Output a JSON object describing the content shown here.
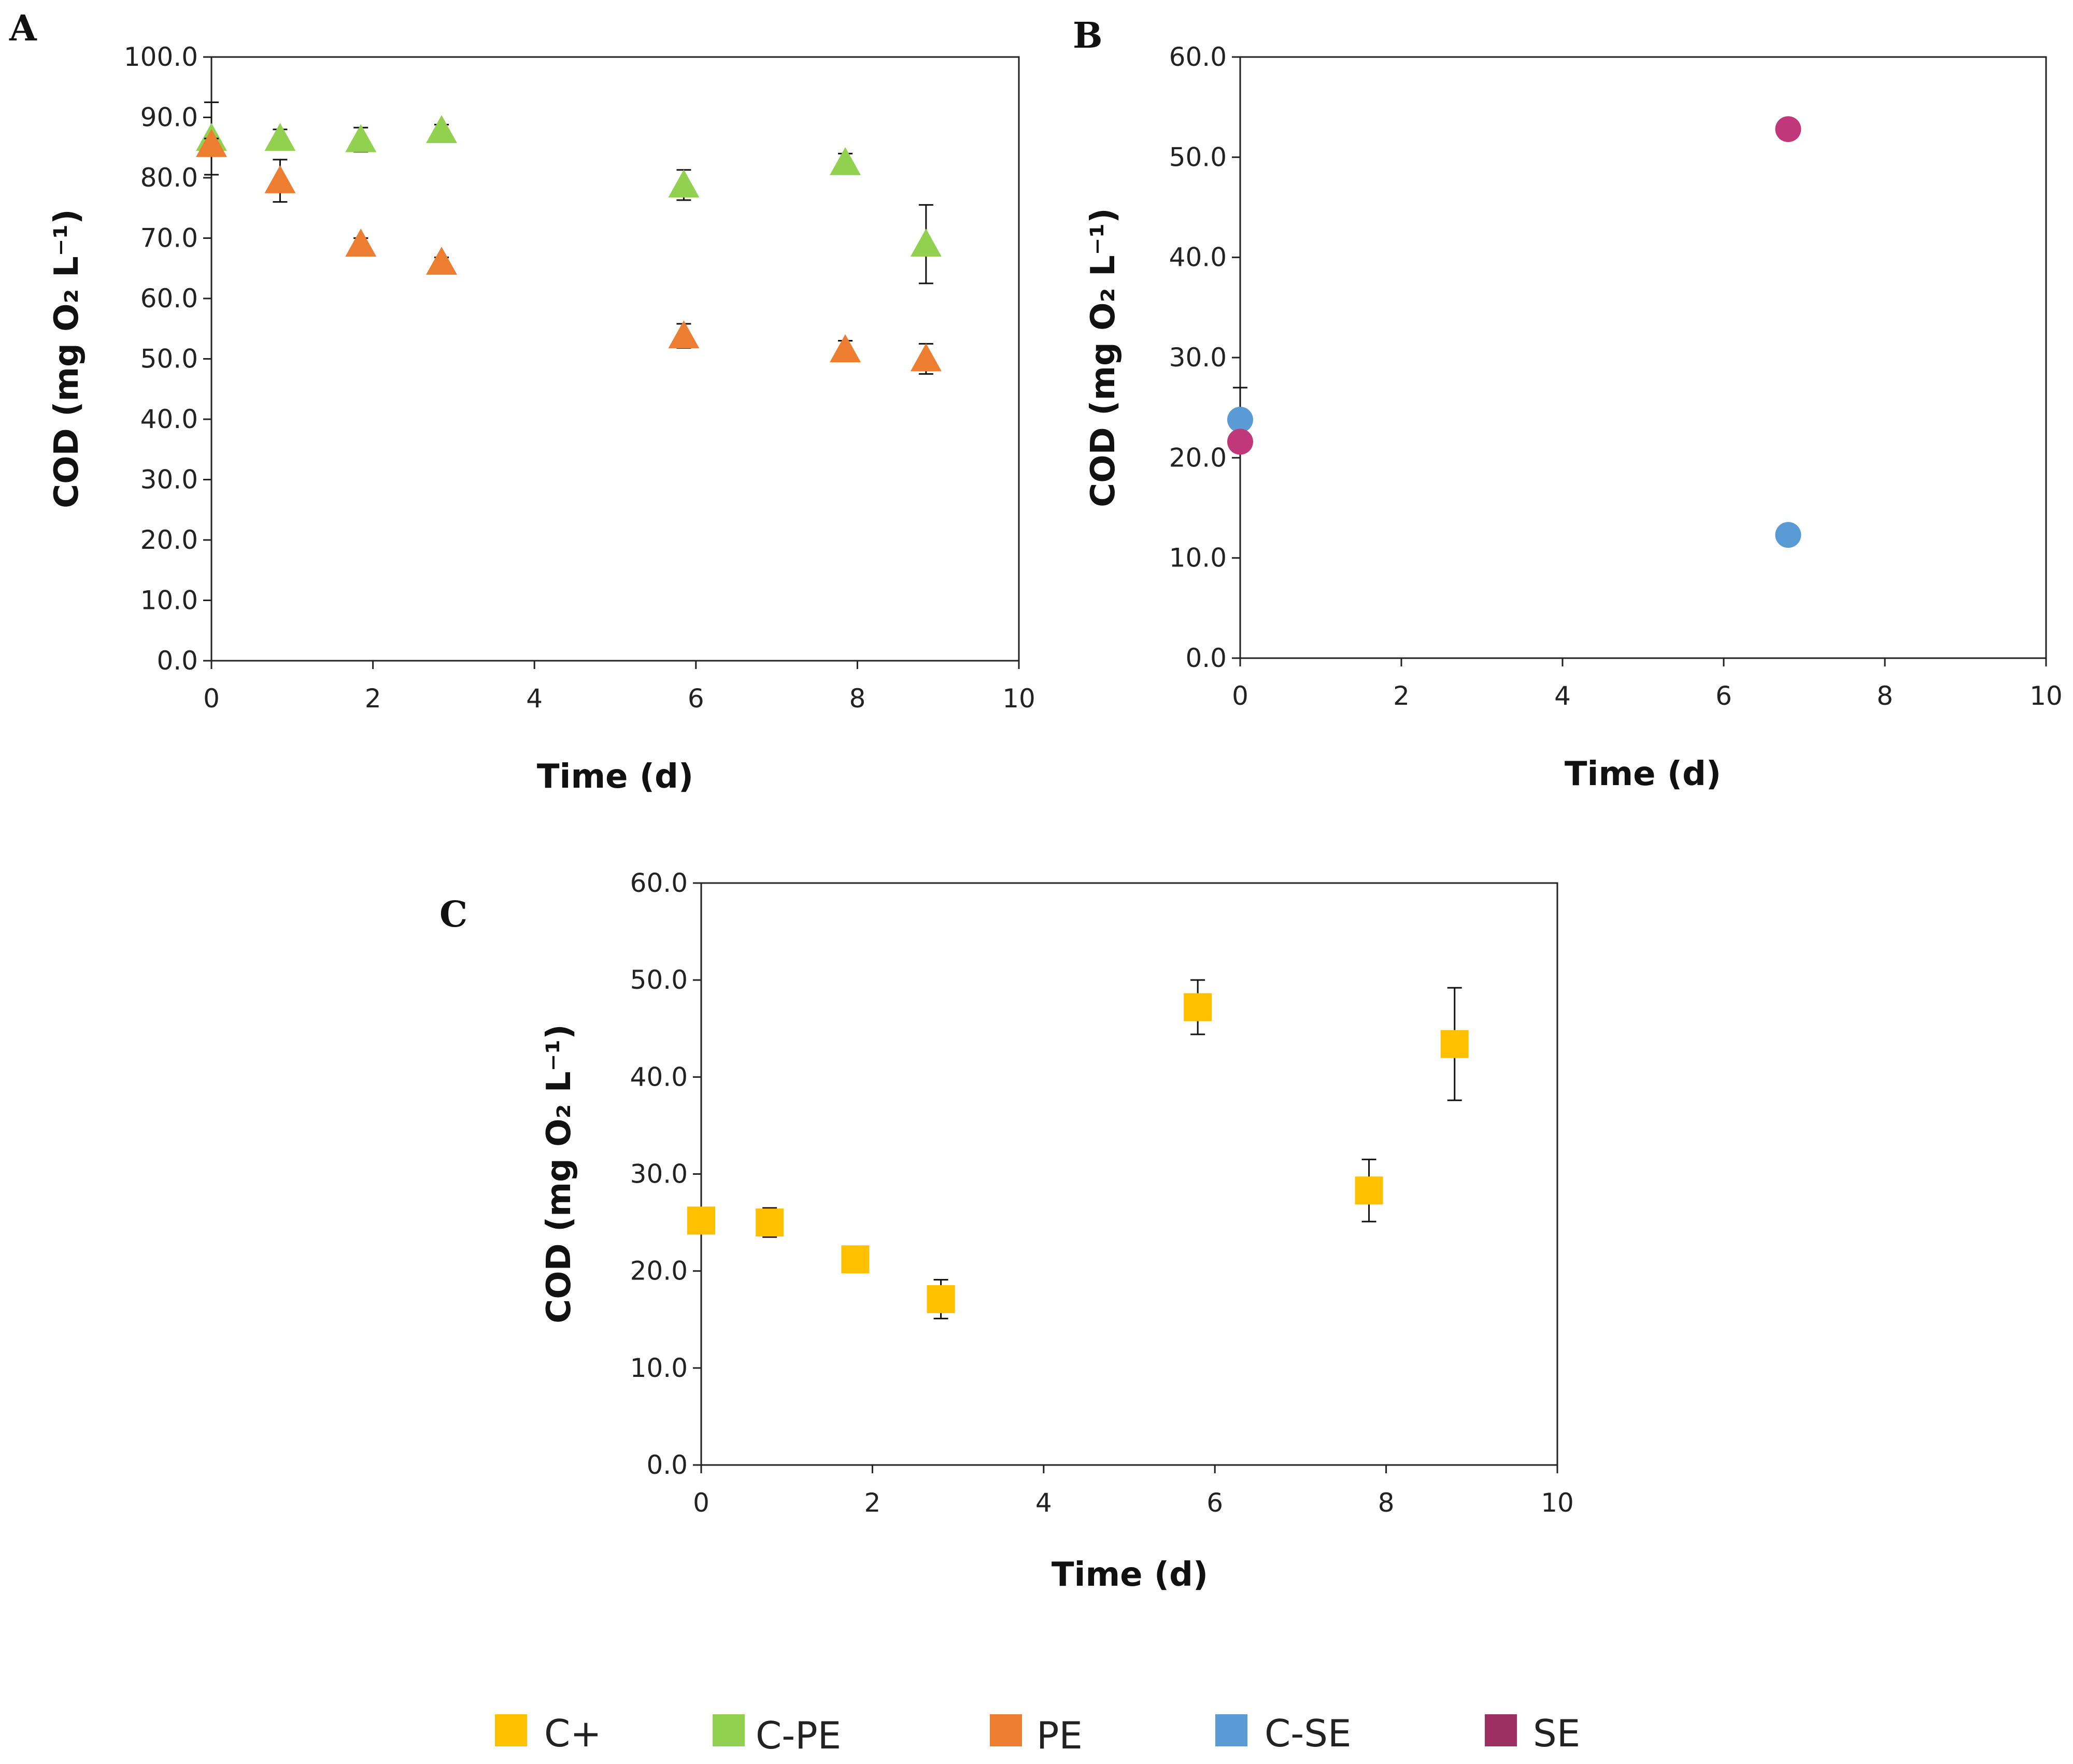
{
  "colors": {
    "C+": "#FFC000",
    "C-PE": "#92D050",
    "PE": "#ED7D31",
    "C-SE": "#5B9BD5",
    "SE": "#C0387A",
    "SE_legend": "#9E2F62",
    "axis": "#222222"
  },
  "legend": [
    {
      "label": "C+",
      "color": "#FFC000"
    },
    {
      "label": "C-PE",
      "color": "#92D050"
    },
    {
      "label": "PE",
      "color": "#ED7D31"
    },
    {
      "label": "C-SE",
      "color": "#5B9BD5"
    },
    {
      "label": "SE",
      "color": "#9E2F62"
    }
  ],
  "chart_data": [
    {
      "panel": "A",
      "type": "scatter",
      "xlabel": "Time (d)",
      "ylabel": "COD (mg O₂ L⁻¹)",
      "xlim": [
        0,
        10
      ],
      "ylim": [
        0,
        100
      ],
      "xticks": [
        "0",
        "2",
        "4",
        "6",
        "8",
        "10"
      ],
      "yticks": [
        "0.0",
        "10.0",
        "20.0",
        "30.0",
        "40.0",
        "50.0",
        "60.0",
        "70.0",
        "80.0",
        "90.0",
        "100.0"
      ],
      "series": [
        {
          "name": "C-PE",
          "marker": "triangle",
          "color": "#92D050",
          "points": [
            {
              "x": 0,
              "y": 86.5,
              "err": 6.0
            },
            {
              "x": 0.85,
              "y": 86.5,
              "err": 1.5
            },
            {
              "x": 1.85,
              "y": 86.3,
              "err": 2.0
            },
            {
              "x": 2.85,
              "y": 87.8,
              "err": 1.0
            },
            {
              "x": 5.85,
              "y": 78.8,
              "err": 2.5
            },
            {
              "x": 7.85,
              "y": 82.5,
              "err": 1.5
            },
            {
              "x": 8.85,
              "y": 69.0,
              "err": 6.5
            }
          ]
        },
        {
          "name": "PE",
          "marker": "triangle",
          "color": "#ED7D31",
          "points": [
            {
              "x": 0,
              "y": 85.5,
              "err": 1.0
            },
            {
              "x": 0.85,
              "y": 79.5,
              "err": 3.5
            },
            {
              "x": 1.85,
              "y": 69.0,
              "err": 1.0
            },
            {
              "x": 2.85,
              "y": 66.0,
              "err": 0.8
            },
            {
              "x": 5.85,
              "y": 53.8,
              "err": 2.0
            },
            {
              "x": 7.85,
              "y": 51.5,
              "err": 1.5
            },
            {
              "x": 8.85,
              "y": 50.0,
              "err": 2.5
            }
          ]
        }
      ]
    },
    {
      "panel": "B",
      "type": "scatter",
      "xlabel": "Time (d)",
      "ylabel": "COD (mg O₂ L⁻¹)",
      "xlim": [
        0,
        10
      ],
      "ylim": [
        0,
        60
      ],
      "xticks": [
        "0",
        "2",
        "4",
        "6",
        "8",
        "10"
      ],
      "yticks": [
        "0.0",
        "10.0",
        "20.0",
        "30.0",
        "40.0",
        "50.0",
        "60.0"
      ],
      "series": [
        {
          "name": "C-SE",
          "marker": "circle",
          "color": "#5B9BD5",
          "points": [
            {
              "x": 0,
              "y": 23.8,
              "err": 3.2
            },
            {
              "x": 6.8,
              "y": 12.3,
              "err": 0
            }
          ]
        },
        {
          "name": "SE",
          "marker": "circle",
          "color": "#C0387A",
          "points": [
            {
              "x": 0,
              "y": 21.6,
              "err": 0
            },
            {
              "x": 6.8,
              "y": 52.8,
              "err": 0
            }
          ]
        }
      ]
    },
    {
      "panel": "C",
      "type": "scatter",
      "xlabel": "Time (d)",
      "ylabel": "COD (mg O₂ L⁻¹)",
      "xlim": [
        0,
        10
      ],
      "ylim": [
        0,
        60
      ],
      "xticks": [
        "0",
        "2",
        "4",
        "6",
        "8",
        "10"
      ],
      "yticks": [
        "0.0",
        "10.0",
        "20.0",
        "30.0",
        "40.0",
        "50.0",
        "60.0"
      ],
      "series": [
        {
          "name": "C+",
          "marker": "square",
          "color": "#FFC000",
          "points": [
            {
              "x": 0,
              "y": 25.2,
              "err": 0
            },
            {
              "x": 0.8,
              "y": 25.0,
              "err": 1.5
            },
            {
              "x": 1.8,
              "y": 21.2,
              "err": 0
            },
            {
              "x": 2.8,
              "y": 17.1,
              "err": 2.0
            },
            {
              "x": 5.8,
              "y": 47.2,
              "err": 2.8
            },
            {
              "x": 7.8,
              "y": 28.3,
              "err": 3.2
            },
            {
              "x": 8.8,
              "y": 43.4,
              "err": 5.8
            }
          ]
        }
      ]
    }
  ]
}
